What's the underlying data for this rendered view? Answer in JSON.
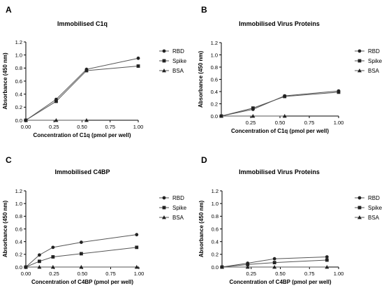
{
  "chart_data": [
    {
      "panel_letter": "A",
      "type": "line",
      "title": "Immobilised C1q",
      "xlabel": "Concentration of C1q (pmol per well)",
      "ylabel": "Absorbance (450 nm)",
      "xlim": [
        0,
        1.0
      ],
      "ylim": [
        0,
        1.2
      ],
      "xticks": [
        "0.00",
        "0.25",
        "0.50",
        "0.75",
        "1.00"
      ],
      "yticks": [
        "0.0",
        "0.2",
        "0.4",
        "0.6",
        "0.8",
        "1.0",
        "1.2"
      ],
      "legend_position": "right",
      "series": [
        {
          "name": "RBD",
          "marker": "circle",
          "x": [
            0,
            0.27,
            0.54,
            1.0
          ],
          "y": [
            0.0,
            0.32,
            0.78,
            0.95
          ]
        },
        {
          "name": "Spike",
          "marker": "square",
          "x": [
            0,
            0.27,
            0.54,
            1.0
          ],
          "y": [
            0.0,
            0.29,
            0.76,
            0.83
          ]
        },
        {
          "name": "BSA",
          "marker": "triangle",
          "x": [
            0,
            0.27,
            0.54
          ],
          "y": [
            0.0,
            0.0,
            0.0
          ]
        }
      ]
    },
    {
      "panel_letter": "B",
      "type": "line",
      "title": "Immobilised Virus Proteins",
      "xlabel": "Concentration of C1q (pmol per well)",
      "ylabel": "Absorbance (450 nm)",
      "xlim": [
        0,
        1.0
      ],
      "ylim": [
        0,
        1.2
      ],
      "xticks": [
        "0.25",
        "0.50",
        "0.75",
        "1.00"
      ],
      "yticks": [
        "0.0",
        "0.2",
        "0.4",
        "0.6",
        "0.8",
        "1.0",
        "1.2"
      ],
      "legend_position": "right",
      "series": [
        {
          "name": "RBD",
          "marker": "circle",
          "x": [
            0,
            0.27,
            0.54,
            1.0
          ],
          "y": [
            0.0,
            0.11,
            0.33,
            0.41
          ]
        },
        {
          "name": "Spike",
          "marker": "square",
          "x": [
            0,
            0.27,
            0.54,
            1.0
          ],
          "y": [
            0.0,
            0.13,
            0.32,
            0.39
          ]
        },
        {
          "name": "BSA",
          "marker": "triangle",
          "x": [
            0,
            0.27,
            0.54
          ],
          "y": [
            0.0,
            0.0,
            0.0
          ]
        }
      ]
    },
    {
      "panel_letter": "C",
      "type": "line",
      "title": "Immobilised C4BP",
      "xlabel": "Concentration of C4BP (pmol per well)",
      "ylabel": "Absorbance (450 nm)",
      "xlim": [
        0,
        1.0
      ],
      "ylim": [
        0,
        1.2
      ],
      "xticks": [
        "0.00",
        "0.25",
        "0.50",
        "0.75",
        "1.00"
      ],
      "yticks": [
        "0.0",
        "0.2",
        "0.4",
        "0.6",
        "0.8",
        "1.0",
        "1.2"
      ],
      "legend_position": "right",
      "series": [
        {
          "name": "RBD",
          "marker": "circle",
          "x": [
            0,
            0.12,
            0.24,
            0.49,
            0.98
          ],
          "y": [
            0.0,
            0.19,
            0.31,
            0.39,
            0.51
          ]
        },
        {
          "name": "Spike",
          "marker": "square",
          "x": [
            0,
            0.12,
            0.24,
            0.49,
            0.98
          ],
          "y": [
            0.0,
            0.09,
            0.16,
            0.21,
            0.31
          ]
        },
        {
          "name": "BSA",
          "marker": "triangle",
          "x": [
            0,
            0.12,
            0.24,
            0.49,
            0.98
          ],
          "y": [
            0.0,
            0.0,
            0.0,
            0.0,
            0.0
          ]
        }
      ]
    },
    {
      "panel_letter": "D",
      "type": "line",
      "title": "Immobilised Virus Proteins",
      "xlabel": "Concentration of C4BP (pmol per well)",
      "ylabel": "Absorbance (450 nm)",
      "xlim": [
        0,
        1.0
      ],
      "ylim": [
        0,
        1.2
      ],
      "xticks": [
        "0.25",
        "0.50",
        "0.75",
        "1.00"
      ],
      "yticks": [
        "0.0",
        "0.2",
        "0.4",
        "0.6",
        "0.8",
        "1.0",
        "1.2"
      ],
      "legend_position": "right",
      "series": [
        {
          "name": "RBD",
          "marker": "circle",
          "x": [
            0,
            0.22,
            0.45,
            0.9
          ],
          "y": [
            0.0,
            0.06,
            0.13,
            0.16
          ]
        },
        {
          "name": "Spike",
          "marker": "square",
          "x": [
            0,
            0.22,
            0.45,
            0.9
          ],
          "y": [
            0.0,
            0.04,
            0.07,
            0.11
          ]
        },
        {
          "name": "BSA",
          "marker": "triangle",
          "x": [
            0,
            0.22,
            0.45,
            0.9
          ],
          "y": [
            0.0,
            0.0,
            0.0,
            0.0
          ]
        }
      ]
    }
  ]
}
